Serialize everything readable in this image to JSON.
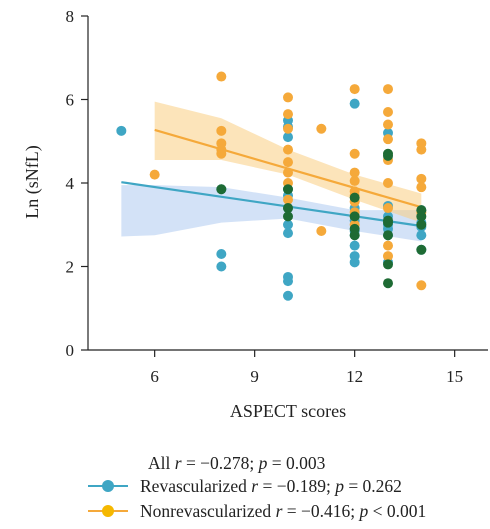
{
  "chart_data": {
    "type": "scatter",
    "xlabel": "ASPECT scores",
    "ylabel": "Ln (sNfL)",
    "xlim": [
      4.0,
      16.0
    ],
    "ylim": [
      0,
      8
    ],
    "xticks": [
      6,
      9,
      12,
      15
    ],
    "yticks": [
      0,
      2,
      4,
      6,
      8
    ],
    "grid": false,
    "legend_position": "bottom",
    "legend": {
      "all": {
        "label": "All",
        "stat_text": "= −0.278; ",
        "p_text": " = 0.003"
      },
      "revascularized": {
        "label": "Revascularized",
        "stat_text": "= −0.189; ",
        "p_text": " = 0.262"
      },
      "nonrevascularized": {
        "label": "Nonrevascularized",
        "stat_text": "= −0.416; ",
        "p_text": " < 0.001"
      },
      "r_symbol": "r",
      "p_symbol": "p"
    },
    "colors": {
      "revascularized": "#3fa6c4",
      "nonrevascularized": "#f5a93a",
      "overlap": "#1e6b34"
    },
    "series": [
      {
        "key": "revascularized",
        "name": "Revascularized",
        "x": [
          5,
          8,
          8,
          8,
          10,
          10,
          10,
          10,
          10,
          10,
          10,
          10,
          10,
          10,
          10,
          12,
          12,
          12,
          12,
          12,
          12,
          12,
          12,
          13,
          13,
          13,
          13,
          13,
          13,
          13,
          14,
          14,
          14,
          14,
          14
        ],
        "y": [
          5.25,
          3.85,
          2.3,
          2.0,
          5.5,
          5.35,
          5.1,
          3.85,
          3.7,
          3.4,
          3.0,
          2.8,
          1.75,
          1.65,
          1.3,
          5.9,
          3.4,
          3.1,
          2.85,
          2.5,
          2.25,
          2.1,
          2.75,
          5.2,
          3.45,
          3.2,
          3.0,
          2.9,
          2.75,
          2.1,
          3.35,
          3.05,
          2.95,
          2.75,
          2.4
        ]
      },
      {
        "key": "nonrevascularized",
        "name": "Nonrevascularized",
        "x": [
          6,
          8,
          8,
          8,
          8,
          8,
          10,
          10,
          10,
          10,
          10,
          10,
          10,
          10,
          11,
          11,
          12,
          12,
          12,
          12,
          12,
          12,
          12,
          12,
          12,
          12,
          13,
          13,
          13,
          13,
          13,
          13,
          13,
          13,
          13,
          14,
          14,
          14,
          14,
          14,
          14
        ],
        "y": [
          4.2,
          6.55,
          5.25,
          4.95,
          4.8,
          4.7,
          6.05,
          5.65,
          5.3,
          4.8,
          4.5,
          4.25,
          4.0,
          3.6,
          5.3,
          2.85,
          6.25,
          4.7,
          4.25,
          4.05,
          3.8,
          3.7,
          3.55,
          3.3,
          3.2,
          3.0,
          6.25,
          5.7,
          5.4,
          5.05,
          4.55,
          4.0,
          3.4,
          2.5,
          2.25,
          4.95,
          4.8,
          4.1,
          3.9,
          3.3,
          1.55
        ]
      },
      {
        "key": "overlap",
        "name": "",
        "x": [
          8,
          10,
          10,
          10,
          12,
          12,
          12,
          12,
          13,
          13,
          13,
          13,
          13,
          13,
          13,
          14,
          14,
          14,
          14
        ],
        "y": [
          3.85,
          3.85,
          3.4,
          3.2,
          3.65,
          3.2,
          2.9,
          2.75,
          4.7,
          4.65,
          3.05,
          2.75,
          2.05,
          1.6,
          3.1,
          3.35,
          3.2,
          3.0,
          2.4
        ]
      }
    ],
    "fits": [
      {
        "key": "revascularized",
        "line": [
          [
            5,
            4.02
          ],
          [
            14,
            2.97
          ]
        ],
        "band": [
          [
            5,
            3.95
          ],
          [
            6,
            3.95
          ],
          [
            8,
            3.9
          ],
          [
            10,
            3.65
          ],
          [
            12,
            3.35
          ],
          [
            14,
            3.35
          ]
        ],
        "band_low": [
          [
            5,
            2.72
          ],
          [
            6,
            2.75
          ],
          [
            8,
            3.05
          ],
          [
            10,
            3.15
          ],
          [
            12,
            2.85
          ],
          [
            14,
            2.6
          ]
        ]
      },
      {
        "key": "nonrevascularized",
        "line": [
          [
            6,
            5.27
          ],
          [
            14,
            3.42
          ]
        ],
        "band": [
          [
            6,
            5.95
          ],
          [
            8,
            5.55
          ],
          [
            10,
            4.8
          ],
          [
            12,
            4.2
          ],
          [
            14,
            3.75
          ]
        ],
        "band_low": [
          [
            6,
            4.55
          ],
          [
            8,
            4.55
          ],
          [
            10,
            4.2
          ],
          [
            12,
            3.6
          ],
          [
            14,
            3.05
          ]
        ]
      }
    ]
  }
}
